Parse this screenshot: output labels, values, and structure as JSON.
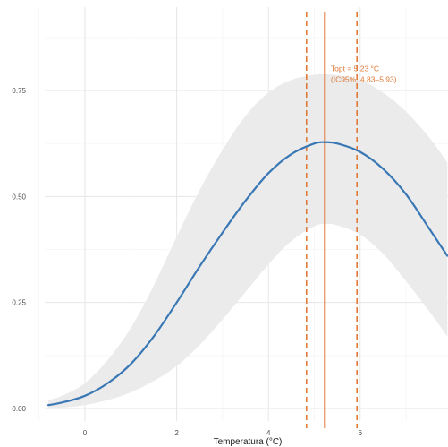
{
  "chart_data": {
    "type": "line",
    "title": "",
    "xlabel": "Temperatura (°C)",
    "ylabel": "",
    "xlim": [
      -0.8,
      7.9
    ],
    "ylim": [
      -0.02,
      0.85
    ],
    "x_ticks": [
      0,
      2,
      4,
      6
    ],
    "x_tick_labels": [
      "0",
      "2",
      "4",
      "6"
    ],
    "y_ticks": [
      0.0,
      0.25,
      0.5,
      0.75
    ],
    "y_tick_labels": [
      "0.00",
      "0.25",
      "0.50",
      "0.75"
    ],
    "grid": true,
    "legend": "none",
    "series": [
      {
        "color": "#3a78b5",
        "x": [
          -0.8,
          -0.5,
          0,
          0.5,
          1,
          1.5,
          2,
          2.5,
          3,
          3.5,
          4,
          4.5,
          5,
          5.23,
          5.5,
          6,
          6.5,
          7,
          7.5,
          7.9
        ],
        "values": [
          0.008,
          0.014,
          0.03,
          0.06,
          0.105,
          0.17,
          0.25,
          0.335,
          0.415,
          0.49,
          0.555,
          0.6,
          0.625,
          0.628,
          0.625,
          0.605,
          0.565,
          0.505,
          0.425,
          0.36
        ]
      }
    ],
    "confidence_band": {
      "color": "#ebebeb",
      "x": [
        -0.8,
        -0.5,
        0,
        0.5,
        1,
        1.5,
        2,
        2.5,
        3,
        3.5,
        4,
        4.5,
        5,
        5.23,
        5.5,
        6,
        6.5,
        7,
        7.5,
        7.9
      ],
      "lower": [
        0.0,
        0.002,
        0.008,
        0.02,
        0.038,
        0.065,
        0.1,
        0.15,
        0.21,
        0.275,
        0.34,
        0.395,
        0.43,
        0.435,
        0.432,
        0.41,
        0.365,
        0.3,
        0.23,
        0.17
      ],
      "upper": [
        0.02,
        0.03,
        0.06,
        0.115,
        0.19,
        0.29,
        0.405,
        0.515,
        0.61,
        0.69,
        0.745,
        0.775,
        0.787,
        0.788,
        0.786,
        0.775,
        0.745,
        0.7,
        0.64,
        0.58
      ]
    },
    "vlines": [
      {
        "x": 5.23,
        "style": "solid",
        "color": "#e07b39"
      },
      {
        "x": 4.83,
        "style": "dashed",
        "color": "#e07b39"
      },
      {
        "x": 5.93,
        "style": "dashed",
        "color": "#e07b39"
      }
    ],
    "annotations": [
      {
        "text": "Topt = 5.23 °C",
        "x": 5.3,
        "y": 0.795,
        "color": "#e07b39"
      },
      {
        "text": "(IC95%: 4.83–5.93)",
        "x": 5.3,
        "y": 0.77,
        "color": "#e07b39"
      }
    ]
  }
}
